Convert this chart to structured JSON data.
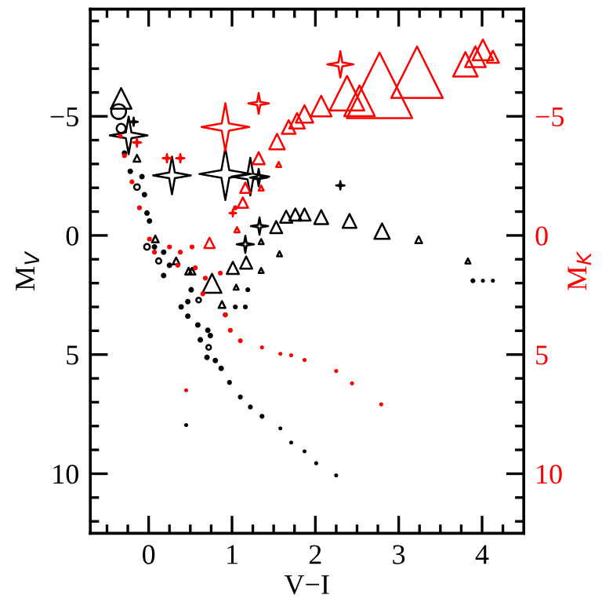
{
  "chart_data": {
    "type": "bubble",
    "xlabel": "V−I",
    "ylabel": "M$_{V}$",
    "y2label": "M$_{K}$",
    "xlim": [
      -0.7,
      4.5
    ],
    "ylim": [
      12.5,
      -9.5
    ],
    "y2lim": [
      12.5,
      -9.5
    ],
    "xticks": [
      {
        "value": -0.5,
        "label": null
      },
      {
        "value": -0.25,
        "label": null
      },
      0,
      {
        "value": 0.25,
        "label": null
      },
      {
        "value": 0.5,
        "label": null
      },
      {
        "value": 0.75,
        "label": null
      },
      1,
      {
        "value": 1.25,
        "label": null
      },
      {
        "value": 1.5,
        "label": null
      },
      {
        "value": 1.75,
        "label": null
      },
      2,
      {
        "value": 2.25,
        "label": null
      },
      {
        "value": 2.5,
        "label": null
      },
      {
        "value": 2.75,
        "label": null
      },
      3,
      {
        "value": 3.25,
        "label": null
      },
      {
        "value": 3.5,
        "label": null
      },
      {
        "value": 3.75,
        "label": null
      },
      4,
      {
        "value": 4.25,
        "label": null
      }
    ],
    "yticks": [
      {
        "value": -9,
        "label": null
      },
      {
        "value": -8,
        "label": null
      },
      {
        "value": -7,
        "label": null
      },
      {
        "value": -6,
        "label": null
      },
      {
        "value": -5,
        "label": "−5"
      },
      {
        "value": -4,
        "label": null
      },
      {
        "value": -3,
        "label": null
      },
      {
        "value": -2,
        "label": null
      },
      {
        "value": -1,
        "label": null
      },
      0,
      {
        "value": 1,
        "label": null
      },
      {
        "value": 2,
        "label": null
      },
      {
        "value": 3,
        "label": null
      },
      {
        "value": 4,
        "label": null
      },
      5,
      {
        "value": 6,
        "label": null
      },
      {
        "value": 7,
        "label": null
      },
      {
        "value": 8,
        "label": null
      },
      {
        "value": 9,
        "label": null
      },
      10,
      {
        "value": 11,
        "label": null
      },
      {
        "value": 12,
        "label": null
      }
    ],
    "y2ticks": [
      {
        "value": -9,
        "label": null
      },
      {
        "value": -8,
        "label": null
      },
      {
        "value": -7,
        "label": null
      },
      {
        "value": -6,
        "label": null
      },
      {
        "value": -5,
        "label": "−5"
      },
      {
        "value": -4,
        "label": null
      },
      {
        "value": -3,
        "label": null
      },
      {
        "value": -2,
        "label": null
      },
      {
        "value": -1,
        "label": null
      },
      0,
      {
        "value": 1,
        "label": null
      },
      {
        "value": 2,
        "label": null
      },
      {
        "value": 3,
        "label": null
      },
      {
        "value": 4,
        "label": null
      },
      5,
      {
        "value": 6,
        "label": null
      },
      {
        "value": 7,
        "label": null
      },
      {
        "value": 8,
        "label": null
      },
      {
        "value": 9,
        "label": null
      },
      10,
      {
        "value": 11,
        "label": null
      },
      {
        "value": 12,
        "label": null
      }
    ],
    "series": [
      {
        "color": "#000000",
        "marker": "triangle",
        "x": [
          -0.33,
          -0.14,
          0.08,
          0.33,
          0.48,
          0.52,
          0.76,
          0.88,
          1.01,
          1.17,
          1.53,
          1.65,
          1.76,
          1.87,
          2.07,
          2.41,
          2.8,
          3.24,
          1.05,
          1.35,
          1.57,
          1.35,
          3.83
        ],
        "values": [
          -5.75,
          -3.24,
          0.15,
          1.07,
          1.5,
          1.5,
          2.01,
          2.9,
          1.36,
          1.14,
          -0.35,
          -0.79,
          -0.88,
          -0.88,
          -0.77,
          -0.61,
          -0.18,
          0.18,
          2.17,
          1.47,
          0.77,
          0.26,
          1.07
        ],
        "sizes": [
          0.1,
          0.011,
          0.011,
          0.011,
          0.011,
          0.011,
          0.084,
          0.011,
          0.034,
          0.034,
          0.034,
          0.034,
          0.034,
          0.034,
          0.045,
          0.045,
          0.056,
          0.011,
          0.006,
          0.006,
          0.006,
          0.006,
          0.006
        ]
      },
      {
        "color": "#000000",
        "marker": "star",
        "x": [
          -0.24,
          0.28,
          0.92,
          1.22,
          1.32,
          2.3,
          -0.18,
          1.16,
          1.33
        ],
        "values": [
          -4.2,
          -2.52,
          -2.58,
          -2.47,
          -2.43,
          -2.1,
          -4.77,
          0.37,
          -0.39
        ],
        "sizes": [
          0.1,
          0.1,
          0.19,
          0.1,
          0.021,
          0.005,
          0.005,
          0.021,
          0.021
        ]
      },
      {
        "color": "#000000",
        "marker": "circle",
        "x": [
          -0.36,
          -0.33,
          -0.14,
          -0.02,
          0.12,
          0.6,
          0.72
        ],
        "values": [
          -5.2,
          -4.49,
          -2.03,
          0.48,
          1.07,
          2.71,
          4.7
        ],
        "sizes": [
          0.08,
          0.03,
          0.012,
          0.012,
          0.01,
          0.008,
          0.008
        ]
      },
      {
        "color": "#000000",
        "marker": "dot",
        "x": [
          -0.29,
          -0.22,
          -0.08,
          -0.05,
          -0.02,
          0.01,
          0.07,
          0.18,
          0.18,
          0.25,
          0.39,
          0.47,
          0.51,
          0.47,
          0.59,
          0.62,
          0.71,
          0.74,
          0.7,
          0.8,
          0.87,
          0.97,
          1.1,
          1.22,
          1.36,
          1.58,
          1.71,
          1.87,
          2.01,
          2.25,
          0.45,
          0.92,
          1.04,
          1.16,
          1.19,
          3.89,
          4.01,
          4.13
        ],
        "values": [
          -3.46,
          -2.69,
          -2.47,
          -1.71,
          -0.94,
          -0.61,
          0.48,
          0.7,
          1.68,
          1.25,
          3.0,
          2.78,
          2.28,
          3.39,
          3.76,
          4.38,
          3.98,
          4.2,
          5.12,
          5.25,
          5.58,
          6.17,
          6.78,
          7.2,
          7.59,
          8.1,
          8.69,
          9.06,
          9.56,
          10.07,
          7.96,
          3.33,
          3.0,
          3.0,
          2.28,
          1.9,
          1.9,
          1.9
        ],
        "sizes": [
          0.003,
          0.003,
          0.003,
          0.003,
          0.003,
          0.003,
          0.003,
          0.003,
          0.003,
          0.003,
          0.003,
          0.003,
          0.003,
          0.003,
          0.003,
          0.003,
          0.003,
          0.003,
          0.003,
          0.003,
          0.003,
          0.002,
          0.002,
          0.002,
          0.002,
          0.001,
          0.001,
          0.001,
          0.001,
          0.001,
          0.001,
          0.002,
          0.002,
          0.002,
          0.002,
          0.002,
          0.001,
          0.001
        ]
      },
      {
        "color": "#ff0000",
        "marker": "triangle",
        "x": [
          1.54,
          1.68,
          1.78,
          1.87,
          2.07,
          2.38,
          2.53,
          2.77,
          3.22,
          3.8,
          3.92,
          4.01,
          4.13,
          1.32,
          1.13,
          1.16,
          0.73,
          1.56,
          1.35,
          1.06
        ],
        "values": [
          -3.94,
          -4.55,
          -4.81,
          -5.1,
          -5.43,
          -5.97,
          -5.65,
          -6.3,
          -6.85,
          -7.18,
          -7.5,
          -7.79,
          -7.5,
          -3.24,
          -1.38,
          -2.0,
          0.31,
          -2.98,
          -1.99,
          -0.24
        ],
        "sizes": [
          0.056,
          0.044,
          0.056,
          0.07,
          0.1,
          0.28,
          0.22,
          1.0,
          0.62,
          0.14,
          0.1,
          0.1,
          0.034,
          0.034,
          0.025,
          0.025,
          0.025,
          0.006,
          0.006,
          0.006
        ]
      },
      {
        "color": "#ff0000",
        "marker": "star",
        "x": [
          0.92,
          1.32,
          2.3,
          -0.14,
          0.22,
          0.38,
          1.01
        ],
        "values": [
          -4.55,
          -5.54,
          -7.18,
          -3.9,
          -3.24,
          -3.24,
          -0.94
        ],
        "sizes": [
          0.16,
          0.03,
          0.048,
          0.005,
          0.005,
          0.005,
          0.0033
        ]
      },
      {
        "color": "#ff0000",
        "marker": "dot",
        "x": [
          -0.34,
          -0.29,
          -0.2,
          -0.11,
          0.01,
          0.07,
          0.25,
          0.38,
          0.52,
          0.35,
          0.56,
          0.68,
          0.86,
          0.92,
          0.98,
          1.1,
          1.36,
          1.58,
          1.71,
          1.87,
          2.25,
          2.44,
          2.79,
          0.45,
          0.65,
          1.04
        ],
        "values": [
          -4.16,
          -3.35,
          -2.25,
          -1.16,
          0.15,
          0.7,
          0.48,
          0.7,
          0.48,
          1.25,
          1.36,
          1.79,
          1.58,
          3.33,
          3.98,
          4.42,
          4.7,
          4.97,
          5.03,
          5.23,
          5.69,
          6.21,
          7.09,
          6.5,
          2.45,
          -1.16
        ],
        "sizes": [
          0.002,
          0.002,
          0.002,
          0.002,
          0.002,
          0.002,
          0.002,
          0.002,
          0.002,
          0.002,
          0.002,
          0.002,
          0.002,
          0.002,
          0.002,
          0.002,
          0.001,
          0.001,
          0.001,
          0.001,
          0.001,
          0.001,
          0.001,
          0.001,
          0.002,
          0.002
        ]
      }
    ]
  }
}
